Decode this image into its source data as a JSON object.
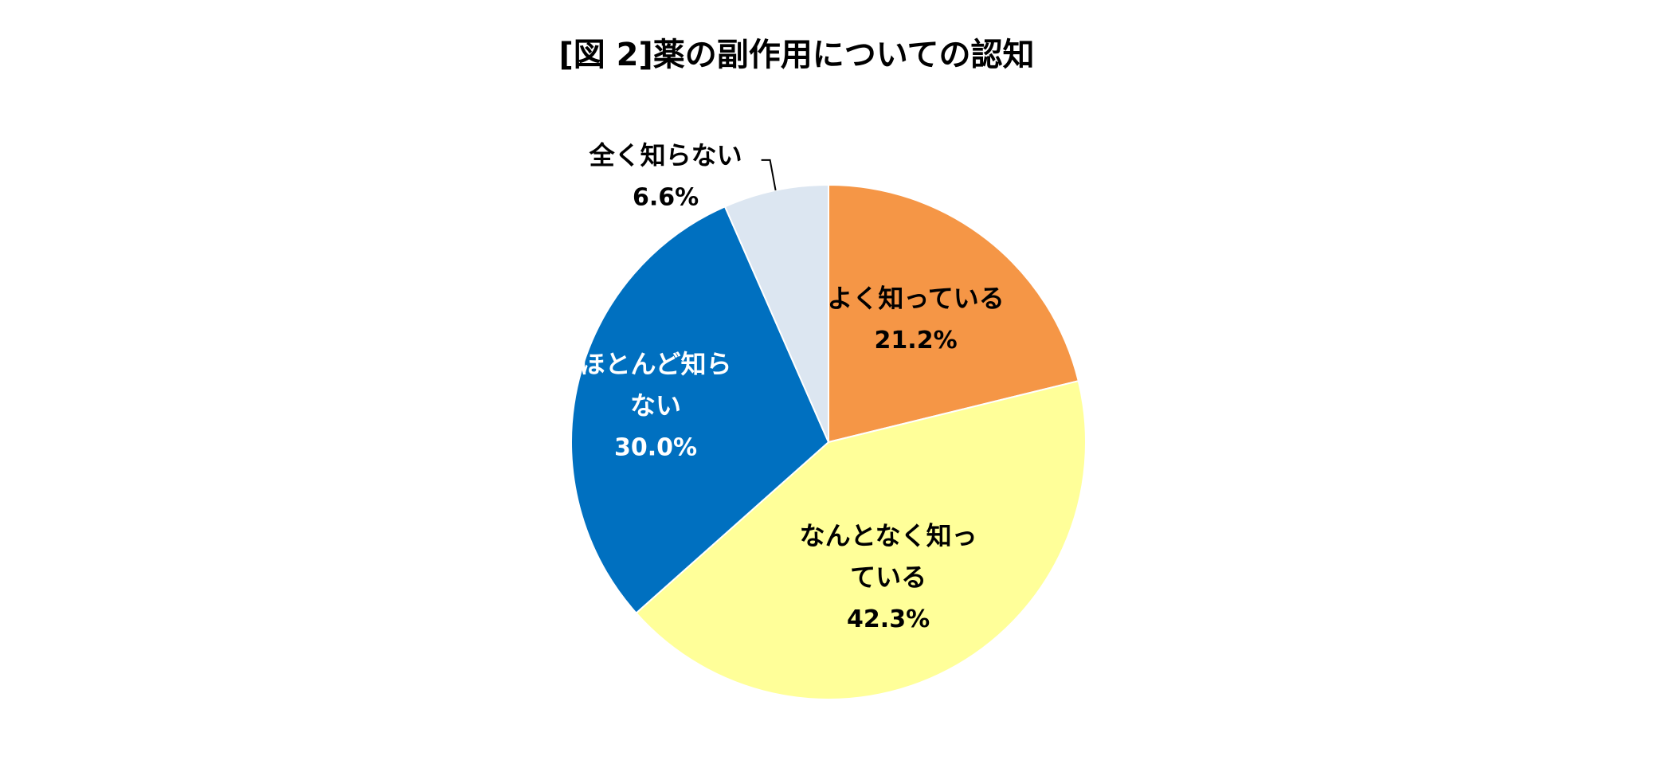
{
  "chart_data": {
    "type": "pie",
    "title": "[図 2]薬の副作用についての認知",
    "slices": [
      {
        "label_lines": [
          "よく知っている"
        ],
        "value": 21.2,
        "value_label": "21.2%",
        "color": "#F59646",
        "text_color": "#000000"
      },
      {
        "label_lines": [
          "なんとなく知っ",
          "ている"
        ],
        "value": 42.3,
        "value_label": "42.3%",
        "color": "#FFFF99",
        "text_color": "#000000"
      },
      {
        "label_lines": [
          "ほとんど知ら",
          "ない"
        ],
        "value": 30.0,
        "value_label": "30.0%",
        "color": "#0070C0",
        "text_color": "#FFFFFF"
      },
      {
        "label_lines": [
          "全く知らない"
        ],
        "value": 6.6,
        "value_label": "6.6%",
        "color": "#DCE6F1",
        "text_color": "#000000"
      }
    ],
    "start_angle": "12 o'clock",
    "direction": "clockwise",
    "legend": "none",
    "label_placement": "inside slices; smallest slice labeled outside with leader line"
  }
}
